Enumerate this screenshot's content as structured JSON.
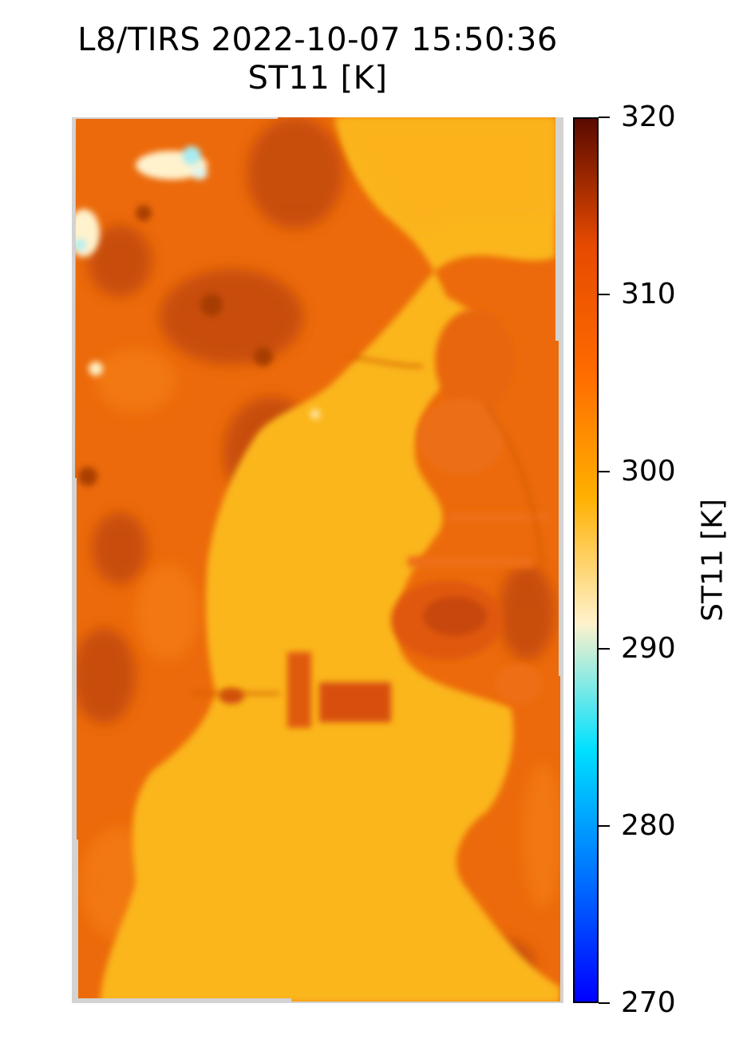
{
  "figure": {
    "title_line1": "L8/TIRS 2022-10-07 15:50:36",
    "title_line2": "ST11 [K]"
  },
  "map": {
    "content": "Landsat 8 TIRS band 11 surface temperature raster image",
    "colormap": [
      "#0000ff",
      "#0073ff",
      "#00e0ff",
      "#fff2cc",
      "#ffb000",
      "#ff6a00",
      "#e64a00",
      "#5a0a00"
    ]
  },
  "colorbar": {
    "label": "ST11 [K]",
    "min": 270,
    "max": 320,
    "ticks": [
      "320",
      "310",
      "300",
      "290",
      "280",
      "270"
    ]
  }
}
